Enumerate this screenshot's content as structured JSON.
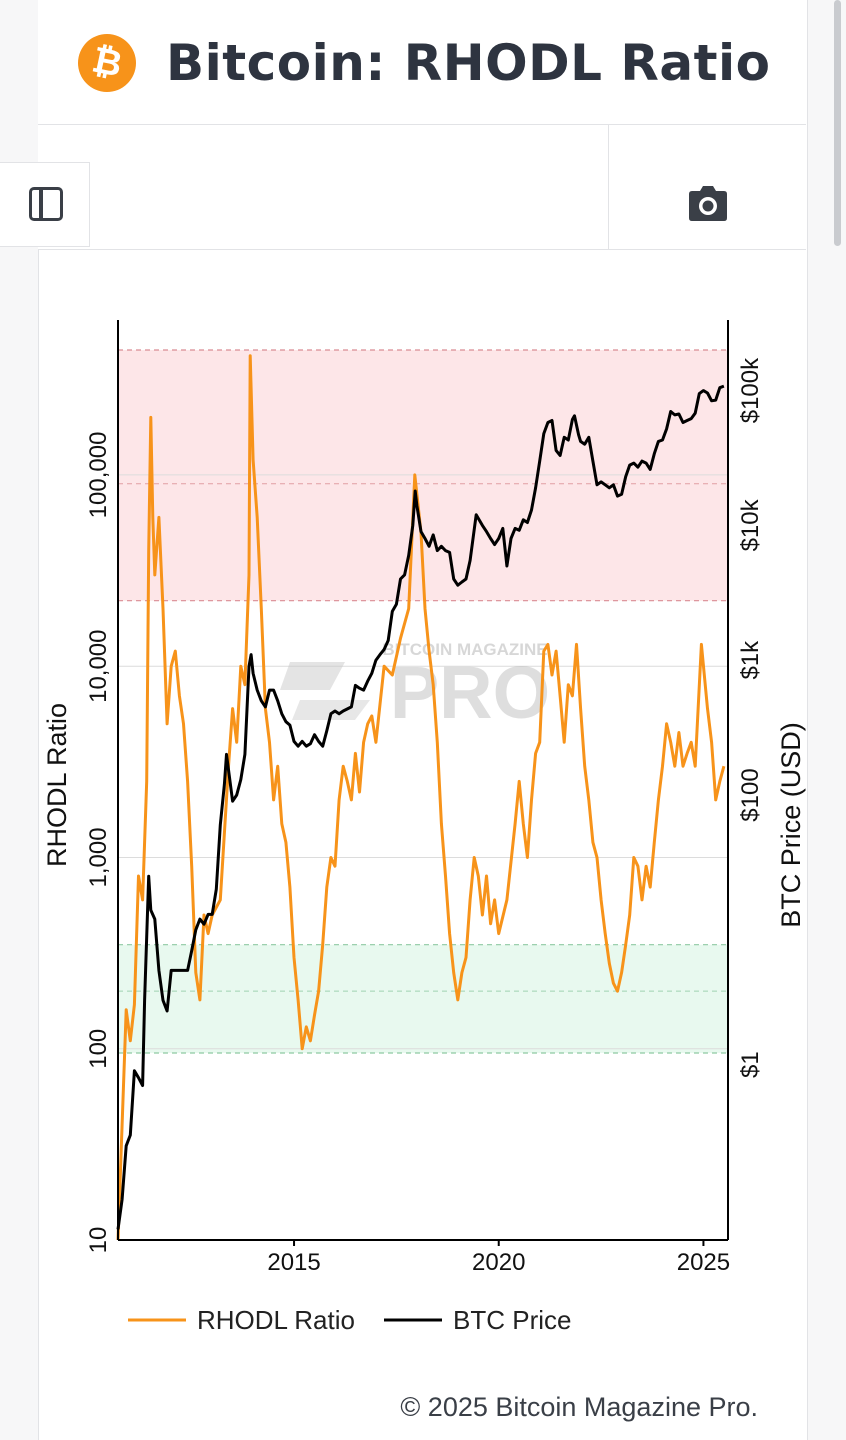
{
  "header": {
    "logo_icon": "bitcoin-logo-icon",
    "logo_glyph": "₿",
    "title": "Bitcoin: RHODL Ratio"
  },
  "toolbar": {
    "sidebar_icon": "sidebar-toggle-icon",
    "camera_icon": "camera-icon"
  },
  "footer": {
    "copyright": "© 2025 Bitcoin Magazine Pro."
  },
  "watermark": {
    "small_text": "BITCOIN MAGAZINE",
    "big_text": "PRO"
  },
  "colors": {
    "accent": "#f7931a",
    "rhodl": "#f7931a",
    "btc": "#000000",
    "high_zone": "#fde6e8",
    "low_zone": "#e8f9ef"
  },
  "chart_data": {
    "type": "line",
    "title": "",
    "xlabel": "",
    "ylabel_left": "RHODL Ratio",
    "ylabel_right": "BTC Price (USD)",
    "x_ticks": [
      "2015",
      "2020",
      "2025"
    ],
    "y_left_ticks": [
      "10",
      "100",
      "1,000",
      "10,000",
      "100,000"
    ],
    "y_right_ticks": [
      "$1",
      "$100",
      "$1k",
      "$10k",
      "$100k"
    ],
    "y_left_scale": "log",
    "y_right_scale": "log",
    "x_range": [
      2010.7,
      2025.6
    ],
    "y_left_range": [
      10,
      450000
    ],
    "y_right_range": [
      0.05,
      200000
    ],
    "zones": [
      {
        "name": "high",
        "from": 22000,
        "to": 450000,
        "mid": 90000
      },
      {
        "name": "low",
        "from": 95,
        "to": 350,
        "mid": 200
      }
    ],
    "legend_position": "bottom",
    "series": [
      {
        "name": "RHODL Ratio",
        "axis": "left",
        "points": [
          [
            2010.7,
            10
          ],
          [
            2010.8,
            40
          ],
          [
            2010.9,
            160
          ],
          [
            2011.0,
            110
          ],
          [
            2011.1,
            170
          ],
          [
            2011.2,
            800
          ],
          [
            2011.3,
            600
          ],
          [
            2011.4,
            2500
          ],
          [
            2011.45,
            40000
          ],
          [
            2011.5,
            200000
          ],
          [
            2011.55,
            60000
          ],
          [
            2011.6,
            30000
          ],
          [
            2011.7,
            60000
          ],
          [
            2011.8,
            20000
          ],
          [
            2011.9,
            5000
          ],
          [
            2012.0,
            10000
          ],
          [
            2012.1,
            12000
          ],
          [
            2012.2,
            7000
          ],
          [
            2012.3,
            5000
          ],
          [
            2012.4,
            2500
          ],
          [
            2012.5,
            900
          ],
          [
            2012.6,
            250
          ],
          [
            2012.7,
            180
          ],
          [
            2012.8,
            500
          ],
          [
            2012.9,
            400
          ],
          [
            2013.0,
            500
          ],
          [
            2013.2,
            600
          ],
          [
            2013.4,
            3000
          ],
          [
            2013.5,
            6000
          ],
          [
            2013.6,
            4000
          ],
          [
            2013.7,
            10000
          ],
          [
            2013.8,
            8000
          ],
          [
            2013.9,
            30000
          ],
          [
            2013.93,
            420000
          ],
          [
            2014.0,
            120000
          ],
          [
            2014.1,
            60000
          ],
          [
            2014.2,
            20000
          ],
          [
            2014.3,
            6000
          ],
          [
            2014.4,
            4000
          ],
          [
            2014.5,
            2000
          ],
          [
            2014.6,
            3000
          ],
          [
            2014.7,
            1500
          ],
          [
            2014.8,
            1200
          ],
          [
            2014.9,
            700
          ],
          [
            2015.0,
            300
          ],
          [
            2015.1,
            180
          ],
          [
            2015.2,
            100
          ],
          [
            2015.3,
            130
          ],
          [
            2015.4,
            110
          ],
          [
            2015.5,
            150
          ],
          [
            2015.6,
            200
          ],
          [
            2015.7,
            350
          ],
          [
            2015.8,
            700
          ],
          [
            2015.9,
            1000
          ],
          [
            2016.0,
            900
          ],
          [
            2016.1,
            2000
          ],
          [
            2016.2,
            3000
          ],
          [
            2016.3,
            2500
          ],
          [
            2016.4,
            2000
          ],
          [
            2016.5,
            3500
          ],
          [
            2016.6,
            2200
          ],
          [
            2016.7,
            4000
          ],
          [
            2016.8,
            5000
          ],
          [
            2016.9,
            5500
          ],
          [
            2017.0,
            4000
          ],
          [
            2017.2,
            10000
          ],
          [
            2017.4,
            9000
          ],
          [
            2017.6,
            14000
          ],
          [
            2017.8,
            20000
          ],
          [
            2017.95,
            100000
          ],
          [
            2018.1,
            50000
          ],
          [
            2018.2,
            20000
          ],
          [
            2018.3,
            12000
          ],
          [
            2018.4,
            8000
          ],
          [
            2018.5,
            4000
          ],
          [
            2018.6,
            1500
          ],
          [
            2018.7,
            800
          ],
          [
            2018.8,
            400
          ],
          [
            2018.9,
            250
          ],
          [
            2019.0,
            180
          ],
          [
            2019.1,
            250
          ],
          [
            2019.2,
            300
          ],
          [
            2019.3,
            600
          ],
          [
            2019.4,
            1000
          ],
          [
            2019.5,
            800
          ],
          [
            2019.6,
            500
          ],
          [
            2019.7,
            800
          ],
          [
            2019.8,
            450
          ],
          [
            2019.9,
            600
          ],
          [
            2020.0,
            400
          ],
          [
            2020.2,
            600
          ],
          [
            2020.4,
            1500
          ],
          [
            2020.5,
            2500
          ],
          [
            2020.6,
            1500
          ],
          [
            2020.7,
            1000
          ],
          [
            2020.8,
            2000
          ],
          [
            2020.9,
            3500
          ],
          [
            2021.0,
            4000
          ],
          [
            2021.1,
            12000
          ],
          [
            2021.2,
            13000
          ],
          [
            2021.3,
            9000
          ],
          [
            2021.4,
            12000
          ],
          [
            2021.5,
            7000
          ],
          [
            2021.6,
            4000
          ],
          [
            2021.7,
            8000
          ],
          [
            2021.8,
            7000
          ],
          [
            2021.9,
            13000
          ],
          [
            2022.0,
            6000
          ],
          [
            2022.1,
            3000
          ],
          [
            2022.2,
            2000
          ],
          [
            2022.3,
            1200
          ],
          [
            2022.4,
            1000
          ],
          [
            2022.5,
            600
          ],
          [
            2022.6,
            400
          ],
          [
            2022.7,
            280
          ],
          [
            2022.8,
            220
          ],
          [
            2022.9,
            200
          ],
          [
            2023.0,
            250
          ],
          [
            2023.1,
            350
          ],
          [
            2023.2,
            500
          ],
          [
            2023.3,
            1000
          ],
          [
            2023.4,
            900
          ],
          [
            2023.5,
            600
          ],
          [
            2023.6,
            900
          ],
          [
            2023.7,
            700
          ],
          [
            2023.8,
            1200
          ],
          [
            2023.9,
            2000
          ],
          [
            2024.0,
            3000
          ],
          [
            2024.1,
            5000
          ],
          [
            2024.2,
            4000
          ],
          [
            2024.3,
            3000
          ],
          [
            2024.4,
            4500
          ],
          [
            2024.5,
            3000
          ],
          [
            2024.6,
            3500
          ],
          [
            2024.7,
            4000
          ],
          [
            2024.8,
            3000
          ],
          [
            2024.95,
            13000
          ],
          [
            2025.1,
            6000
          ],
          [
            2025.2,
            4000
          ],
          [
            2025.3,
            2000
          ],
          [
            2025.4,
            2500
          ],
          [
            2025.5,
            3000
          ]
        ]
      },
      {
        "name": "BTC Price",
        "axis": "right",
        "points": [
          [
            2010.7,
            0.06
          ],
          [
            2010.8,
            0.1
          ],
          [
            2010.9,
            0.25
          ],
          [
            2011.0,
            0.3
          ],
          [
            2011.1,
            0.9
          ],
          [
            2011.2,
            0.8
          ],
          [
            2011.3,
            0.7
          ],
          [
            2011.35,
            3
          ],
          [
            2011.45,
            25
          ],
          [
            2011.5,
            14
          ],
          [
            2011.6,
            12
          ],
          [
            2011.7,
            5
          ],
          [
            2011.8,
            3
          ],
          [
            2011.9,
            2.5
          ],
          [
            2012.0,
            5
          ],
          [
            2012.1,
            5
          ],
          [
            2012.2,
            5
          ],
          [
            2012.3,
            5
          ],
          [
            2012.4,
            5
          ],
          [
            2012.5,
            7
          ],
          [
            2012.6,
            10
          ],
          [
            2012.7,
            12
          ],
          [
            2012.8,
            11
          ],
          [
            2012.9,
            13
          ],
          [
            2013.0,
            13
          ],
          [
            2013.1,
            20
          ],
          [
            2013.2,
            60
          ],
          [
            2013.3,
            120
          ],
          [
            2013.35,
            200
          ],
          [
            2013.5,
            90
          ],
          [
            2013.6,
            100
          ],
          [
            2013.7,
            130
          ],
          [
            2013.8,
            200
          ],
          [
            2013.9,
            900
          ],
          [
            2013.95,
            1100
          ],
          [
            2014.0,
            800
          ],
          [
            2014.1,
            600
          ],
          [
            2014.2,
            500
          ],
          [
            2014.3,
            450
          ],
          [
            2014.4,
            600
          ],
          [
            2014.5,
            600
          ],
          [
            2014.6,
            500
          ],
          [
            2014.7,
            400
          ],
          [
            2014.8,
            350
          ],
          [
            2014.9,
            330
          ],
          [
            2015.0,
            250
          ],
          [
            2015.1,
            230
          ],
          [
            2015.2,
            250
          ],
          [
            2015.3,
            230
          ],
          [
            2015.4,
            240
          ],
          [
            2015.5,
            280
          ],
          [
            2015.6,
            250
          ],
          [
            2015.7,
            230
          ],
          [
            2015.8,
            300
          ],
          [
            2015.9,
            400
          ],
          [
            2016.0,
            420
          ],
          [
            2016.1,
            400
          ],
          [
            2016.2,
            420
          ],
          [
            2016.4,
            450
          ],
          [
            2016.5,
            650
          ],
          [
            2016.6,
            620
          ],
          [
            2016.7,
            600
          ],
          [
            2016.8,
            700
          ],
          [
            2016.9,
            800
          ],
          [
            2017.0,
            1000
          ],
          [
            2017.1,
            1100
          ],
          [
            2017.2,
            1200
          ],
          [
            2017.3,
            1400
          ],
          [
            2017.4,
            2300
          ],
          [
            2017.5,
            2600
          ],
          [
            2017.6,
            4000
          ],
          [
            2017.7,
            4300
          ],
          [
            2017.8,
            6000
          ],
          [
            2017.9,
            10000
          ],
          [
            2017.96,
            18000
          ],
          [
            2018.0,
            14000
          ],
          [
            2018.1,
            9000
          ],
          [
            2018.2,
            8000
          ],
          [
            2018.3,
            7000
          ],
          [
            2018.4,
            8500
          ],
          [
            2018.5,
            6500
          ],
          [
            2018.6,
            7000
          ],
          [
            2018.7,
            6500
          ],
          [
            2018.8,
            6300
          ],
          [
            2018.9,
            4000
          ],
          [
            2019.0,
            3600
          ],
          [
            2019.1,
            3800
          ],
          [
            2019.2,
            4000
          ],
          [
            2019.3,
            5500
          ],
          [
            2019.45,
            12000
          ],
          [
            2019.6,
            10000
          ],
          [
            2019.7,
            9000
          ],
          [
            2019.8,
            8000
          ],
          [
            2019.9,
            7200
          ],
          [
            2020.0,
            8000
          ],
          [
            2020.1,
            9500
          ],
          [
            2020.2,
            5000
          ],
          [
            2020.3,
            8000
          ],
          [
            2020.4,
            9500
          ],
          [
            2020.5,
            9200
          ],
          [
            2020.6,
            11000
          ],
          [
            2020.7,
            10500
          ],
          [
            2020.8,
            13000
          ],
          [
            2020.9,
            19000
          ],
          [
            2021.0,
            30000
          ],
          [
            2021.1,
            48000
          ],
          [
            2021.2,
            58000
          ],
          [
            2021.3,
            60000
          ],
          [
            2021.4,
            36000
          ],
          [
            2021.5,
            33000
          ],
          [
            2021.6,
            45000
          ],
          [
            2021.7,
            43000
          ],
          [
            2021.8,
            61000
          ],
          [
            2021.85,
            65000
          ],
          [
            2021.95,
            47000
          ],
          [
            2022.0,
            42000
          ],
          [
            2022.1,
            40000
          ],
          [
            2022.2,
            45000
          ],
          [
            2022.3,
            30000
          ],
          [
            2022.4,
            20000
          ],
          [
            2022.5,
            21000
          ],
          [
            2022.6,
            20000
          ],
          [
            2022.7,
            19000
          ],
          [
            2022.8,
            20000
          ],
          [
            2022.9,
            16500
          ],
          [
            2023.0,
            17000
          ],
          [
            2023.1,
            23000
          ],
          [
            2023.2,
            28000
          ],
          [
            2023.3,
            29000
          ],
          [
            2023.4,
            27000
          ],
          [
            2023.5,
            30000
          ],
          [
            2023.6,
            29000
          ],
          [
            2023.7,
            26000
          ],
          [
            2023.8,
            34000
          ],
          [
            2023.9,
            42000
          ],
          [
            2024.0,
            43000
          ],
          [
            2024.1,
            52000
          ],
          [
            2024.2,
            70000
          ],
          [
            2024.3,
            66000
          ],
          [
            2024.4,
            67000
          ],
          [
            2024.5,
            58000
          ],
          [
            2024.6,
            60000
          ],
          [
            2024.7,
            62000
          ],
          [
            2024.8,
            68000
          ],
          [
            2024.9,
            95000
          ],
          [
            2025.0,
            100000
          ],
          [
            2025.1,
            96000
          ],
          [
            2025.2,
            84000
          ],
          [
            2025.3,
            85000
          ],
          [
            2025.4,
            105000
          ],
          [
            2025.5,
            108000
          ]
        ]
      }
    ]
  }
}
